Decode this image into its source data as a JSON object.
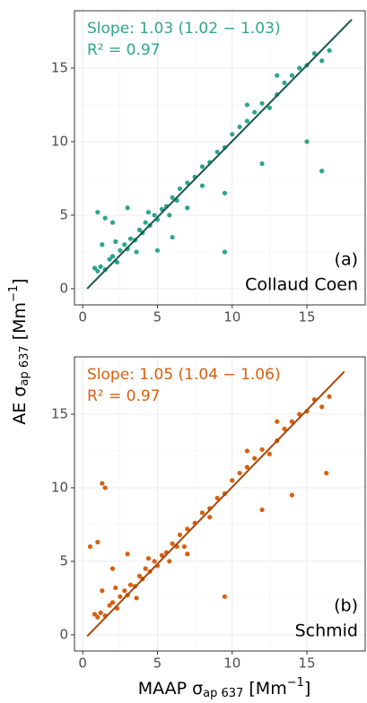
{
  "chart_data": [
    {
      "type": "scatter",
      "color": "#2ca58d",
      "line_color": "#17574a",
      "x": [
        1,
        1.2,
        1.5,
        1.8,
        2,
        2.3,
        2.5,
        2.8,
        3,
        3.2,
        3.5,
        3.8,
        4,
        4.2,
        4.5,
        4.8,
        5,
        5.3,
        5.6,
        6,
        6.3,
        6.5,
        7,
        7.5,
        8,
        8.5,
        9,
        9.5,
        10,
        10.5,
        11,
        11.5,
        12,
        12.5,
        13,
        13.5,
        14,
        14.5,
        15,
        15.5,
        16,
        16.5,
        1.5,
        1,
        2,
        5,
        6,
        9.5,
        16,
        15,
        12,
        9.5,
        1.3,
        3,
        7,
        11,
        13,
        8,
        0.8,
        2.2,
        3.6,
        4.4,
        5.8
      ],
      "values": [
        1.2,
        1.5,
        1.3,
        2,
        2.2,
        1.8,
        2.6,
        3,
        2.7,
        3.4,
        3.3,
        4,
        3.8,
        4.5,
        4.3,
        5,
        4.7,
        5.4,
        5.6,
        6.2,
        6,
        6.8,
        7.2,
        7.6,
        8.3,
        8.6,
        9.3,
        9.6,
        10.5,
        11,
        11.4,
        12,
        12.6,
        12.3,
        13.2,
        14,
        14.5,
        15,
        15.2,
        16,
        15.5,
        16.2,
        4.8,
        5.2,
        4.5,
        2.6,
        3.5,
        2.5,
        8,
        10,
        8.5,
        6.5,
        3,
        5.5,
        5.5,
        12.5,
        14.5,
        7,
        1.4,
        3.2,
        2.5,
        5.2,
        5
      ],
      "fit": {
        "x": [
          0.3,
          18
        ],
        "y": [
          0,
          18.3
        ]
      },
      "xlim": [
        -0.55,
        18.9
      ],
      "ylim": [
        -1.1,
        18.9
      ],
      "xticks": [
        0,
        5,
        10,
        15
      ],
      "yticks": [
        0,
        5,
        10,
        15
      ],
      "grid": true,
      "annotations": {
        "slope": "Slope: 1.03 (1.02 − 1.03)",
        "r2": "R² = 0.97",
        "panel": "(a)",
        "method": "Collaud Coen"
      },
      "y_label": {
        "main": "AE σ",
        "sub": "ap 637",
        "unit": " [Mm",
        "sup": "−1",
        "close": "]"
      }
    },
    {
      "type": "scatter",
      "color": "#d95f0e",
      "line_color": "#a8470a",
      "x": [
        1,
        1.2,
        1.5,
        1.8,
        2,
        2.3,
        2.5,
        2.8,
        3,
        3.2,
        3.5,
        3.8,
        4,
        4.2,
        4.5,
        4.8,
        5,
        5.3,
        5.6,
        6,
        6.3,
        6.5,
        7,
        7.5,
        8,
        8.5,
        9,
        9.5,
        10,
        10.5,
        11,
        11.5,
        12,
        12.5,
        13,
        13.5,
        14,
        14.5,
        15,
        15.5,
        16,
        16.5,
        1.3,
        1.5,
        0.5,
        1,
        2,
        9.5,
        16.3,
        14,
        12,
        8.5,
        1.3,
        3,
        7,
        11,
        13,
        0.8,
        2.2,
        3.6,
        4.4,
        5.8,
        6.8
      ],
      "values": [
        1.2,
        1.5,
        1.3,
        2,
        2.2,
        1.8,
        2.6,
        3,
        2.7,
        3.4,
        3.3,
        4,
        3.8,
        4.5,
        4.3,
        5,
        4.7,
        5.4,
        5.6,
        6.2,
        6,
        6.8,
        7.2,
        7.6,
        8.3,
        8.6,
        9.3,
        9.6,
        10.5,
        11,
        11.4,
        12,
        12.6,
        12.3,
        13.2,
        14,
        14.5,
        15,
        15.2,
        16,
        15.5,
        16.2,
        10.3,
        10,
        6,
        6.3,
        4.5,
        2.6,
        11,
        9.5,
        8.5,
        8,
        3,
        5.5,
        5.5,
        12.5,
        14.5,
        1.4,
        3.2,
        2.5,
        5.2,
        5,
        6
      ],
      "fit": {
        "x": [
          0.3,
          17.5
        ],
        "y": [
          -0.1,
          17.9
        ]
      },
      "xlim": [
        -0.55,
        18.9
      ],
      "ylim": [
        -1.1,
        18.9
      ],
      "xticks": [
        0,
        5,
        10,
        15
      ],
      "yticks": [
        0,
        5,
        10,
        15
      ],
      "grid": true,
      "annotations": {
        "slope": "Slope: 1.05 (1.04 − 1.06)",
        "r2": "R² = 0.97",
        "panel": "(b)",
        "method": "Schmid"
      },
      "x_label": {
        "main": "MAAP σ",
        "sub": "ap 637",
        "unit": " [Mm",
        "sup": "−1",
        "close": "]"
      }
    }
  ]
}
